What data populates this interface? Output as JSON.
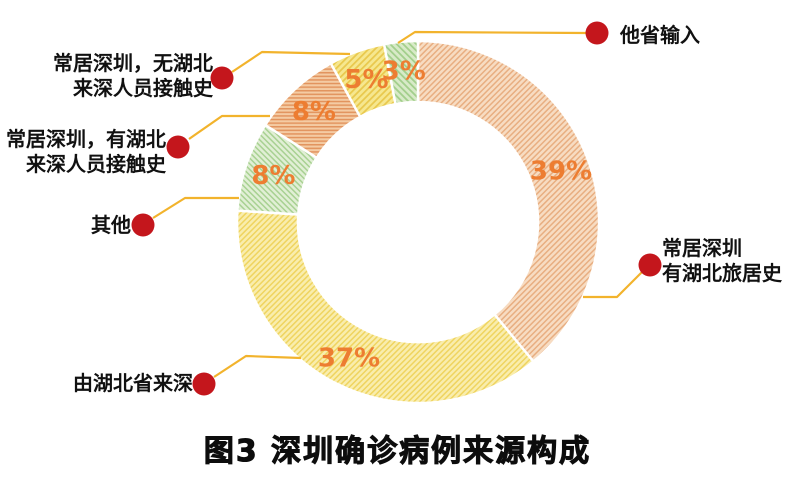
{
  "title": "图3 深圳确诊病例来源构成",
  "chart_data": {
    "type": "donut",
    "title": "图3 深圳确诊病例来源构成",
    "unit": "%",
    "start_angle_deg": 0,
    "direction": "clockwise",
    "segments": [
      {
        "label": "常居深圳 有湖北旅居史",
        "value": 39,
        "base_color": "#f7dcc2",
        "hatch_color": "#e8ae81",
        "hatch_angle": 45,
        "hatch_period": 4,
        "hatch_width": 1.5
      },
      {
        "label": "由湖北省来深",
        "value": 37,
        "base_color": "#f9edad",
        "hatch_color": "#efd45f",
        "hatch_angle": 45,
        "hatch_period": 4,
        "hatch_width": 1.5
      },
      {
        "label": "其他",
        "value": 8,
        "base_color": "#e1efd5",
        "hatch_color": "#a8d192",
        "hatch_angle": -45,
        "hatch_period": 4,
        "hatch_width": 1.5
      },
      {
        "label": "常居深圳，有湖北来深人员接触史",
        "value": 8,
        "base_color": "#f4cba3",
        "hatch_color": "#e2945e",
        "hatch_angle": 90,
        "hatch_period": 3.6,
        "hatch_width": 1.5
      },
      {
        "label": "常居深圳，无湖北来深人员接触史",
        "value": 5,
        "base_color": "#f6e78f",
        "hatch_color": "#e9c94e",
        "hatch_angle": 45,
        "hatch_period": 4.6,
        "hatch_width": 1.8
      },
      {
        "label": "他省输入",
        "value": 3,
        "base_color": "#d8eac8",
        "hatch_color": "#a3cf8c",
        "hatch_angle": -45,
        "hatch_period": 4.6,
        "hatch_width": 1.8
      }
    ],
    "percent_label_color": "#ed7d31",
    "leader_line_color": "#f2b32c",
    "dot_color": "#c4161c"
  },
  "callouts": {
    "other_province": {
      "text": "他省输入"
    },
    "no_hubei_contact": {
      "text": "常居深圳，无湖北\n来深人员接触史"
    },
    "has_hubei_contact": {
      "text": "常居深圳，有湖北\n来深人员接触史"
    },
    "other": {
      "text": "其他"
    },
    "from_hubei": {
      "text": "由湖北省来深"
    },
    "resident_travel": {
      "text": "常居深圳\n有湖北旅居史"
    }
  }
}
